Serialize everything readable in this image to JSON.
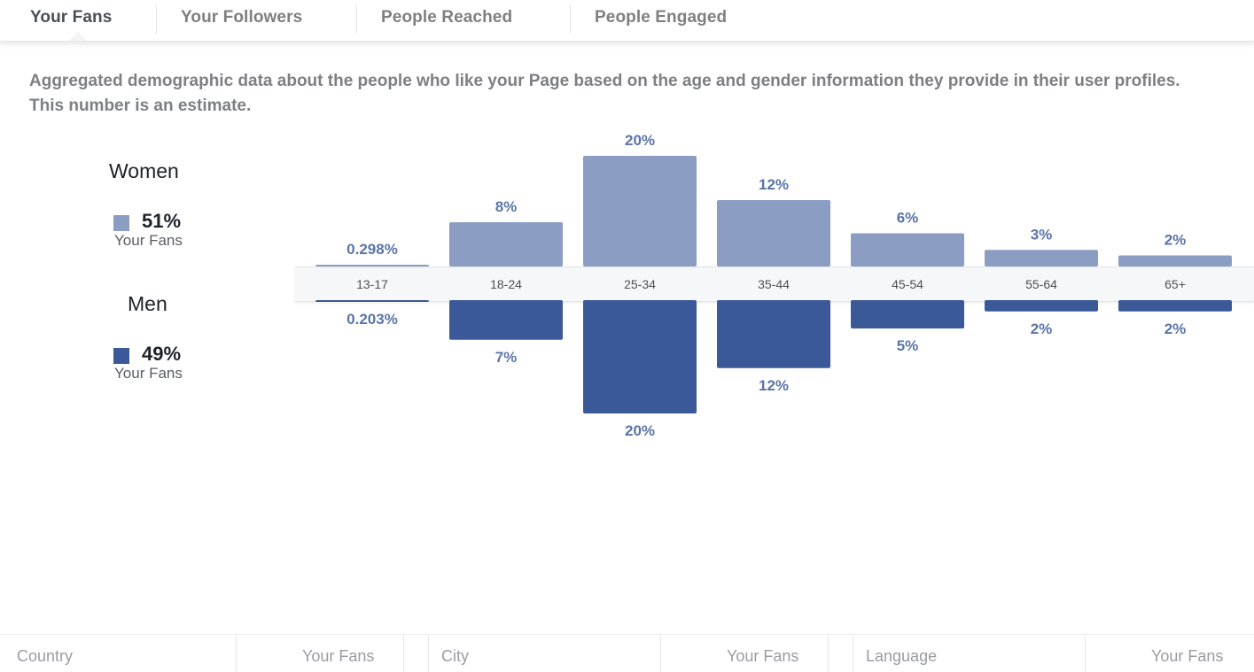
{
  "tabs": [
    {
      "label": "Your Fans",
      "active": true
    },
    {
      "label": "Your Followers",
      "active": false
    },
    {
      "label": "People Reached",
      "active": false
    },
    {
      "label": "People Engaged",
      "active": false
    }
  ],
  "description": "Aggregated demographic data about the people who like your Page based on the age and gender information they provide in their user profiles. This number is an estimate.",
  "legend": {
    "women": {
      "title": "Women",
      "percent": "51%",
      "sub": "Your Fans",
      "color": "#8b9dc3"
    },
    "men": {
      "title": "Men",
      "percent": "49%",
      "sub": "Your Fans",
      "color": "#3b5998"
    }
  },
  "chart_data": {
    "type": "bar",
    "categories": [
      "13-17",
      "18-24",
      "25-34",
      "35-44",
      "45-54",
      "55-64",
      "65+"
    ],
    "series": [
      {
        "name": "Women",
        "values": [
          0.298,
          8,
          20,
          12,
          6,
          3,
          2
        ],
        "labels": [
          "0.298%",
          "8%",
          "20%",
          "12%",
          "6%",
          "3%",
          "2%"
        ],
        "color": "#8b9dc3",
        "direction": "up"
      },
      {
        "name": "Men",
        "values": [
          0.203,
          7,
          20,
          12,
          5,
          2,
          2
        ],
        "labels": [
          "0.203%",
          "7%",
          "20%",
          "12%",
          "5%",
          "2%",
          "2%"
        ],
        "color": "#3b5998",
        "direction": "down"
      }
    ],
    "ylim": [
      0,
      20
    ],
    "label_color": "#5b74a8"
  },
  "bottom_headers": {
    "country": "Country",
    "country_fans": "Your Fans",
    "city": "City",
    "city_fans": "Your Fans",
    "language": "Language",
    "language_fans": "Your Fans"
  }
}
